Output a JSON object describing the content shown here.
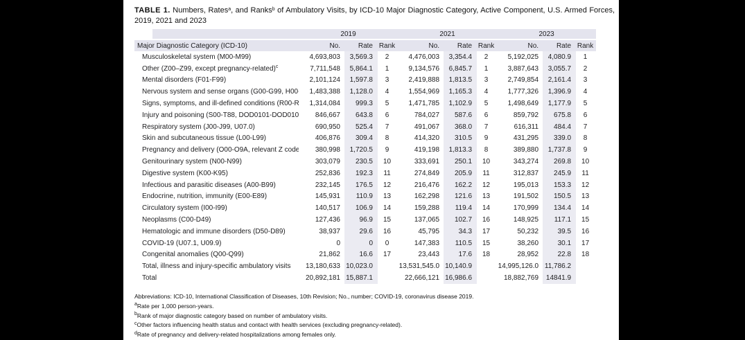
{
  "page": {
    "title": {
      "label": "TABLE 1.",
      "seg1": " Numbers, Rates",
      "sup1": "a",
      "seg2": ", and Ranks",
      "sup2": "b",
      "seg3": " of Ambulatory Visits, by ICD-10 Major Diagnostic Category, Active Component, U.S. Armed Forces, 2019, 2021 and 2023"
    }
  },
  "table": {
    "header": {
      "category": "Major Diagnostic Category (ICD-10)",
      "years": [
        "2019",
        "2021",
        "2023"
      ],
      "subcols": [
        "No.",
        "Rate",
        "Rank"
      ]
    },
    "rows": [
      {
        "label": "Musculoskeletal system (M00-M99)",
        "sup": "",
        "values": [
          "4,693,803",
          "3,569.3",
          "2",
          "4,476,003",
          "3,354.4",
          "2",
          "5,192,025",
          "4,080.9",
          "1"
        ]
      },
      {
        "label": "Other (Z00–Z99, except pregnancy-related)",
        "sup": "c",
        "values": [
          "7,711,548",
          "5,864.1",
          "1",
          "9,134,576",
          "6,845.7",
          "1",
          "3,887,643",
          "3,055.7",
          "2"
        ]
      },
      {
        "label": "Mental disorders (F01-F99)",
        "sup": "",
        "values": [
          "2,101,124",
          "1,597.8",
          "3",
          "2,419,888",
          "1,813.5",
          "3",
          "2,749,854",
          "2,161.4",
          "3"
        ]
      },
      {
        "label": "Nervous system and sense organs (G00-G99, H00-H95)",
        "sup": "",
        "values": [
          "1,483,388",
          "1,128.0",
          "4",
          "1,554,969",
          "1,165.3",
          "4",
          "1,777,326",
          "1,396.9",
          "4"
        ]
      },
      {
        "label": "Signs, symptoms, and ill-defined conditions (R00-R99)",
        "sup": "",
        "values": [
          "1,314,084",
          "999.3",
          "5",
          "1,471,785",
          "1,102.9",
          "5",
          "1,498,649",
          "1,177.9",
          "5"
        ]
      },
      {
        "label": "Injury and poisoning (S00-T88, DOD0101-DOD0105)",
        "sup": "",
        "values": [
          "846,667",
          "643.8",
          "6",
          "784,027",
          "587.6",
          "6",
          "859,792",
          "675.8",
          "6"
        ]
      },
      {
        "label": "Respiratory system (J00-J99, U07.0)",
        "sup": "",
        "values": [
          "690,950",
          "525.4",
          "7",
          "491,067",
          "368.0",
          "7",
          "616,311",
          "484.4",
          "7"
        ]
      },
      {
        "label": "Skin and subcutaneous tissue (L00-L99)",
        "sup": "",
        "values": [
          "406,876",
          "309.4",
          "8",
          "414,320",
          "310.5",
          "9",
          "431,295",
          "339.0",
          "8"
        ]
      },
      {
        "label": "Pregnancy and delivery (O00-O9A, relevant Z codes)",
        "sup": "d",
        "values": [
          "380,998",
          "1,720.5",
          "9",
          "419,198",
          "1,813.3",
          "8",
          "389,880",
          "1,737.8",
          "9"
        ]
      },
      {
        "label": "Genitourinary system (N00-N99)",
        "sup": "",
        "values": [
          "303,079",
          "230.5",
          "10",
          "333,691",
          "250.1",
          "10",
          "343,274",
          "269.8",
          "10"
        ]
      },
      {
        "label": "Digestive system (K00-K95)",
        "sup": "",
        "values": [
          "252,836",
          "192.3",
          "11",
          "274,849",
          "205.9",
          "11",
          "312,837",
          "245.9",
          "11"
        ]
      },
      {
        "label": "Infectious and parasitic diseases (A00-B99)",
        "sup": "",
        "values": [
          "232,145",
          "176.5",
          "12",
          "216,476",
          "162.2",
          "12",
          "195,013",
          "153.3",
          "12"
        ]
      },
      {
        "label": "Endocrine, nutrition, immunity (E00-E89)",
        "sup": "",
        "values": [
          "145,931",
          "110.9",
          "13",
          "162,298",
          "121.6",
          "13",
          "191,502",
          "150.5",
          "13"
        ]
      },
      {
        "label": "Circulatory system (I00-I99)",
        "sup": "",
        "values": [
          "140,517",
          "106.9",
          "14",
          "159,288",
          "119.4",
          "14",
          "170,999",
          "134.4",
          "14"
        ]
      },
      {
        "label": "Neoplasms (C00-D49)",
        "sup": "",
        "values": [
          "127,436",
          "96.9",
          "15",
          "137,065",
          "102.7",
          "16",
          "148,925",
          "117.1",
          "15"
        ]
      },
      {
        "label": "Hematologic and immune disorders (D50-D89)",
        "sup": "",
        "values": [
          "38,937",
          "29.6",
          "16",
          "45,795",
          "34.3",
          "17",
          "50,232",
          "39.5",
          "16"
        ]
      },
      {
        "label": "COVID-19 (U07.1, U09.9)",
        "sup": "",
        "values": [
          "0",
          "0",
          "0",
          "147,383",
          "110.5",
          "15",
          "38,260",
          "30.1",
          "17"
        ]
      },
      {
        "label": "Congenital anomalies (Q00-Q99)",
        "sup": "",
        "values": [
          "21,862",
          "16.6",
          "17",
          "23,443",
          "17.6",
          "18",
          "28,952",
          "22.8",
          "18"
        ]
      },
      {
        "label": "Total, illness and injury-specific ambulatory visits",
        "sup": "",
        "total": true,
        "values": [
          "13,180,633",
          "10,023.0",
          "",
          "13,531,545.0",
          "10,140.9",
          "",
          "14,995,126.0",
          "11,786.2",
          ""
        ]
      },
      {
        "label": "Total",
        "sup": "",
        "total": true,
        "values": [
          "20,892,181",
          "15,887.1",
          "",
          "22,666,121",
          "16,986.6",
          "",
          "18,882,769",
          "14841.9",
          ""
        ]
      }
    ]
  },
  "footnotes": {
    "abbreviations": "Abbreviations: ICD-10, International Classification of Diseases, 10th Revision; No., number; COVID-19, coronavirus disease 2019.",
    "items": [
      {
        "sup": "a",
        "text": "Rate per 1,000 person-years."
      },
      {
        "sup": "b",
        "text": "Rank of major diagnostic category based on number of ambulatory visits."
      },
      {
        "sup": "c",
        "text": "Other factors influencing health status and contact with health services (excluding pregnancy-related)."
      },
      {
        "sup": "d",
        "text": "Rate of pregnancy and delivery-related hospitalizations among females only."
      }
    ]
  },
  "colors": {
    "header_band": "#e4e4ee",
    "rate_stripe": "#ebebf2",
    "page_background": "#ffffff",
    "surround": "#000000",
    "text": "#1d1d1f"
  }
}
